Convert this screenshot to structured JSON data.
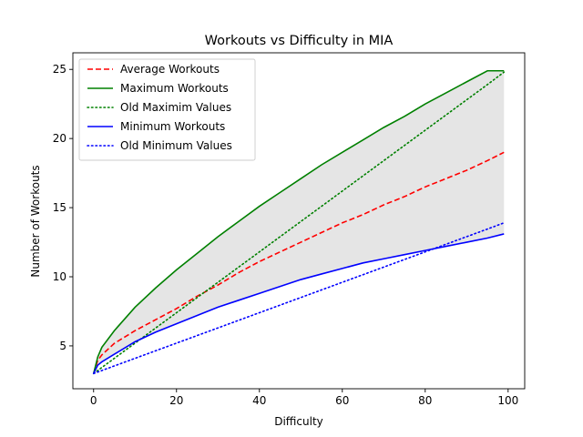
{
  "chart_data": {
    "type": "line",
    "title": "Workouts vs Difficulty in MIA",
    "xlabel": "Difficulty",
    "ylabel": "Number of Workouts",
    "xlim": [
      -5,
      104
    ],
    "ylim": [
      1.9,
      26.2
    ],
    "xticks": [
      0,
      20,
      40,
      60,
      80,
      100
    ],
    "yticks": [
      5,
      10,
      15,
      20,
      25
    ],
    "legend_position": "top-left",
    "grid": false,
    "fill_between": {
      "lower": "Minimum Workouts",
      "upper": "Maximum Workouts",
      "color": "#e5e5e5"
    },
    "x": [
      0,
      1,
      2,
      5,
      10,
      15,
      20,
      25,
      30,
      35,
      40,
      45,
      50,
      55,
      60,
      65,
      70,
      75,
      80,
      85,
      90,
      95,
      99
    ],
    "series": [
      {
        "name": "Average Workouts",
        "color": "#ff0000",
        "style": "dashed",
        "values": [
          3.0,
          3.95,
          4.35,
          5.18,
          6.1,
          6.9,
          7.7,
          8.6,
          9.4,
          10.3,
          11.1,
          11.8,
          12.5,
          13.2,
          13.9,
          14.5,
          15.2,
          15.8,
          16.5,
          17.1,
          17.7,
          18.4,
          19.0
        ]
      },
      {
        "name": "Maximum Workouts",
        "color": "#008000",
        "style": "solid",
        "values": [
          3.0,
          4.2,
          4.9,
          6.1,
          7.8,
          9.2,
          10.5,
          11.7,
          12.9,
          14.0,
          15.1,
          16.1,
          17.1,
          18.1,
          19.0,
          19.9,
          20.8,
          21.6,
          22.5,
          23.3,
          24.1,
          24.9,
          24.9
        ]
      },
      {
        "name": "Old Maximim Values",
        "color": "#008000",
        "style": "dotted",
        "values": [
          3.0,
          3.22,
          3.44,
          4.1,
          5.2,
          6.3,
          7.4,
          8.5,
          9.6,
          10.7,
          11.8,
          12.9,
          14.0,
          15.1,
          16.2,
          17.3,
          18.4,
          19.5,
          20.6,
          21.7,
          22.8,
          23.9,
          24.8
        ]
      },
      {
        "name": "Minimum Workouts",
        "color": "#0000ff",
        "style": "solid",
        "values": [
          3.0,
          3.6,
          3.85,
          4.4,
          5.3,
          6.0,
          6.6,
          7.2,
          7.8,
          8.3,
          8.8,
          9.3,
          9.8,
          10.2,
          10.6,
          11.0,
          11.3,
          11.6,
          11.9,
          12.2,
          12.5,
          12.8,
          13.1
        ]
      },
      {
        "name": "Old Minimum Values",
        "color": "#0000ff",
        "style": "dotted",
        "values": [
          3.0,
          3.11,
          3.22,
          3.55,
          4.1,
          4.65,
          5.2,
          5.75,
          6.3,
          6.85,
          7.4,
          7.95,
          8.5,
          9.05,
          9.6,
          10.15,
          10.7,
          11.25,
          11.8,
          12.35,
          12.9,
          13.45,
          13.9
        ]
      }
    ]
  }
}
